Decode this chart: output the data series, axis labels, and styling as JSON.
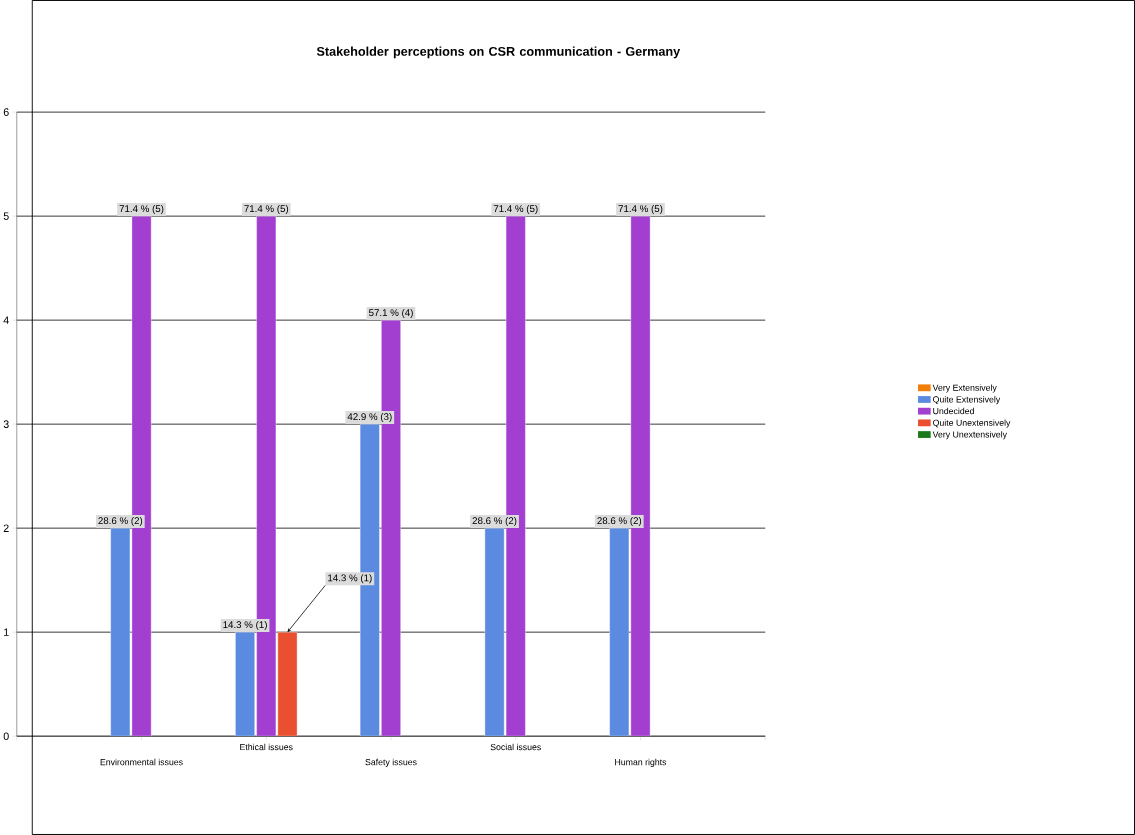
{
  "chart_data": {
    "type": "bar",
    "title": "Stakeholder perceptions on CSR communication - Germany",
    "categories": [
      "Environmental issues",
      "Ethical issues",
      "Safety issues",
      "Social issues",
      "Human rights"
    ],
    "series": [
      {
        "name": "Very Extensively",
        "color": "#f07f09",
        "values": [
          null,
          null,
          null,
          null,
          null
        ]
      },
      {
        "name": "Quite Extensively",
        "color": "#5a8be0",
        "values": [
          2,
          1,
          3,
          2,
          2
        ],
        "value_labels": [
          "28.6 % (2)",
          "14.3 % (1)",
          "42.9 % (3)",
          "28.6 % (2)",
          "28.6 % (2)"
        ]
      },
      {
        "name": "Undecided",
        "color": "#a23fd0",
        "values": [
          5,
          5,
          4,
          5,
          5
        ],
        "value_labels": [
          "71.4 % (5)",
          "71.4 % (5)",
          "57.1 % (4)",
          "71.4 % (5)",
          "71.4 % (5)"
        ]
      },
      {
        "name": "Quite Unextensively",
        "color": "#ea5030",
        "values": [
          null,
          1,
          null,
          null,
          null
        ],
        "value_labels": [
          null,
          "14.3 % (1)",
          null,
          null,
          null
        ]
      },
      {
        "name": "Very Unextensively",
        "color": "#1a7a1a",
        "values": [
          null,
          null,
          null,
          null,
          null
        ]
      }
    ],
    "ylim": [
      0,
      6
    ],
    "yticks": [
      0,
      1,
      2,
      3,
      4,
      5,
      6
    ],
    "grid": "y",
    "legend": "right"
  }
}
